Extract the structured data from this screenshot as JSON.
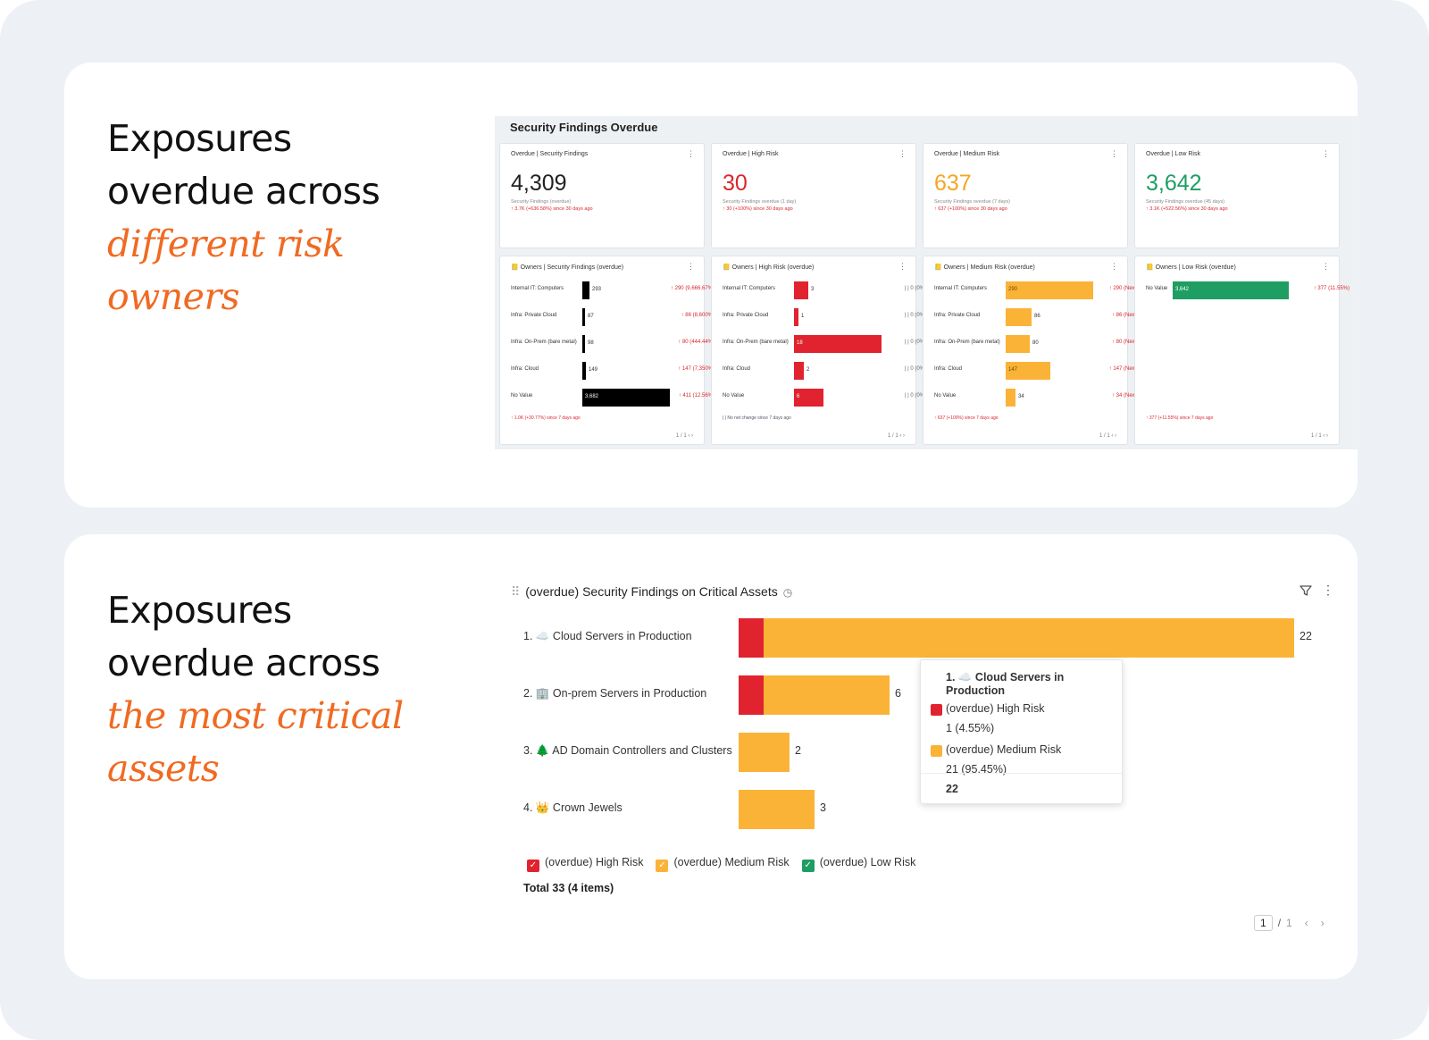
{
  "top_panel": {
    "headline_line1": "Exposures",
    "headline_line2": "overdue across",
    "headline_em1": "different risk",
    "headline_em2": "owners"
  },
  "dashboard": {
    "title": "Security Findings Overdue",
    "kpis": [
      {
        "title": "Overdue | Security Findings",
        "value": "4,309",
        "color": "#222222",
        "sub": "Security Findings (overdue)",
        "change": "↑ 3.7K (+636.58%) since 30 days ago"
      },
      {
        "title": "Overdue | High Risk",
        "value": "30",
        "color": "#d9262e",
        "sub": "Security Findings overdue (1 day)",
        "change": "↑ 30 (+100%) since 30 days ago"
      },
      {
        "title": "Overdue | Medium Risk",
        "value": "637",
        "color": "#f5a623",
        "sub": "Security Findings overdue (7 days)",
        "change": "↑ 637 (+100%) since 30 days ago"
      },
      {
        "title": "Overdue | Low Risk",
        "value": "3,642",
        "color": "#1e9e63",
        "sub": "Security Findings overdue (45 days)",
        "change": "↑ 3.1K (+522.56%) since 30 days ago"
      }
    ],
    "owners": [
      {
        "title": "📒 Owners | Security Findings (overdue)",
        "color": "#000000",
        "max": 3682,
        "rows": [
          {
            "label": "Internal IT: Computers",
            "value": 293,
            "value_text": "293",
            "change": "↑ 290 (9,666.67%)"
          },
          {
            "label": "Infra: Private Cloud",
            "value": 87,
            "value_text": "87",
            "change": "↑ 86 (8,600%)"
          },
          {
            "label": "Infra: On-Prem (bare metal)",
            "value": 98,
            "value_text": "98",
            "change": "↑ 80 (444.44%)"
          },
          {
            "label": "Infra: Cloud",
            "value": 149,
            "value_text": "149",
            "change": "↑ 147 (7,350%)"
          },
          {
            "label": "No Value",
            "value": 3682,
            "value_text": "3,682",
            "change": "↑ 411 (12.56%)"
          }
        ],
        "footer": "↑ 1.0K (+30.77%) since 7 days ago",
        "pager": "1 / 1 ‹ ›"
      },
      {
        "title": "📒 Owners | High Risk (overdue)",
        "color": "#e0232e",
        "max": 18,
        "rows": [
          {
            "label": "Internal IT: Computers",
            "value": 3,
            "value_text": "3",
            "change": "| | 0 (0%)"
          },
          {
            "label": "Infra: Private Cloud",
            "value": 1,
            "value_text": "1",
            "change": "| | 0 (0%)"
          },
          {
            "label": "Infra: On-Prem (bare metal)",
            "value": 18,
            "value_text": "18",
            "change": "| | 0 (0%)"
          },
          {
            "label": "Infra: Cloud",
            "value": 2,
            "value_text": "2",
            "change": "| | 0 (0%)"
          },
          {
            "label": "No Value",
            "value": 6,
            "value_text": "6",
            "change": "| | 0 (0%)"
          }
        ],
        "footer": "| | No net change since 7 days ago",
        "pager": "1 / 1 ‹ ›"
      },
      {
        "title": "📒 Owners | Medium Risk (overdue)",
        "color": "#fbb337",
        "max": 290,
        "rows": [
          {
            "label": "Internal IT: Computers",
            "value": 290,
            "value_text": "290",
            "change": "↑ 290 (New)"
          },
          {
            "label": "Infra: Private Cloud",
            "value": 86,
            "value_text": "86",
            "change": "↑ 86 (New)"
          },
          {
            "label": "Infra: On-Prem (bare metal)",
            "value": 80,
            "value_text": "80",
            "change": "↑ 80 (New)"
          },
          {
            "label": "Infra: Cloud",
            "value": 147,
            "value_text": "147",
            "change": "↑ 147 (New)"
          },
          {
            "label": "No Value",
            "value": 34,
            "value_text": "34",
            "change": "↑ 34 (New)"
          }
        ],
        "footer": "↑ 637 (+100%) since 7 days ago",
        "pager": "1 / 1 ‹ ›"
      },
      {
        "title": "📒 Owners | Low Risk (overdue)",
        "color": "#1e9e63",
        "max": 3642,
        "rows": [
          {
            "label": "No Value",
            "value": 3642,
            "value_text": "3,642",
            "change": "↑ 377 (11.55%)"
          }
        ],
        "footer": "↑ 377 (+11.55%) since 7 days ago",
        "pager": "1 / 1 ‹ ›"
      }
    ]
  },
  "bottom_panel": {
    "headline_line1": "Exposures",
    "headline_line2": "overdue across",
    "headline_em1": "the most critical",
    "headline_em2": "assets"
  },
  "chart_data": {
    "type": "bar",
    "orientation": "horizontal",
    "stacked": true,
    "title": "(overdue) Security Findings on Critical Assets",
    "categories": [
      "1. ☁️ Cloud Servers in Production",
      "2. 🏢 On-prem Servers in Production",
      "3. 🌲 AD Domain Controllers and Clusters",
      "4. 👑 Crown Jewels"
    ],
    "series": [
      {
        "name": "(overdue) High Risk",
        "color": "#e0232e",
        "values": [
          1,
          1,
          0,
          0
        ]
      },
      {
        "name": "(overdue) Medium Risk",
        "color": "#fbb337",
        "values": [
          21,
          5,
          2,
          3
        ]
      },
      {
        "name": "(overdue) Low Risk",
        "color": "#1e9e63",
        "values": [
          0,
          0,
          0,
          0
        ]
      }
    ],
    "totals": [
      "22",
      "6",
      "2",
      "3"
    ],
    "xlim": [
      0,
      22
    ],
    "legend": "bottom-left",
    "summary": "Total 33 (4 items)"
  },
  "tooltip": {
    "title": "1. ☁️ Cloud Servers in Production",
    "rows": [
      {
        "name": "(overdue) High Risk",
        "value": "1  (4.55%)",
        "color": "#e0232e"
      },
      {
        "name": "(overdue) Medium Risk",
        "value": "21  (95.45%)",
        "color": "#fbb337"
      }
    ],
    "total": "22"
  },
  "pager": {
    "current": "1",
    "separator": "/",
    "total": "1",
    "prev": "‹",
    "next": "›"
  },
  "icons": {
    "drag": "drag-handle-icon",
    "clock": "clock-icon",
    "filter": "filter-icon",
    "more": "more-vertical-icon"
  }
}
